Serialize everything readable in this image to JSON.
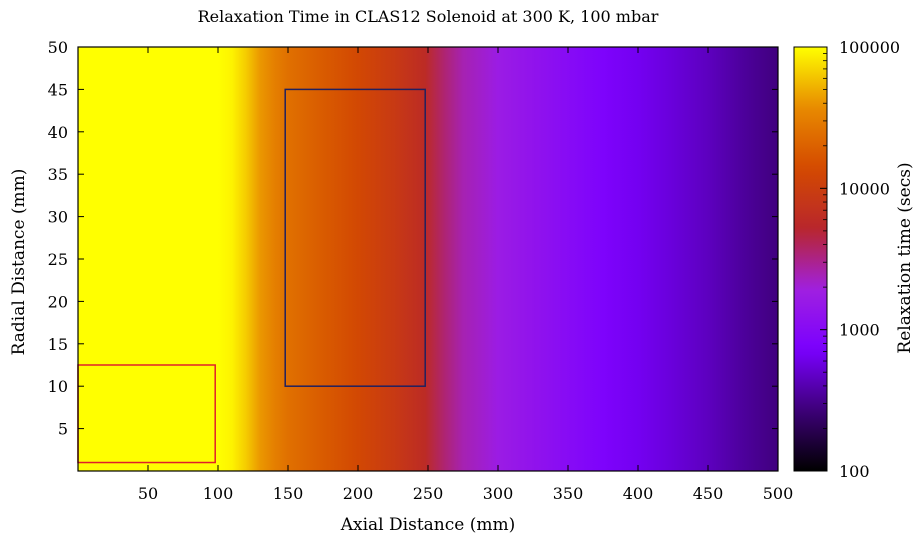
{
  "chart_data": {
    "type": "heatmap",
    "title": "Relaxation Time in CLAS12 Solenoid at 300 K, 100 mbar",
    "xlabel": "Axial Distance (mm)",
    "ylabel": "Radial Distance (mm)",
    "colorbar_label": "Relaxation time (secs)",
    "xlim": [
      0,
      500
    ],
    "ylim": [
      0,
      50
    ],
    "x_ticks": [
      50,
      100,
      150,
      200,
      250,
      300,
      350,
      400,
      450,
      500
    ],
    "y_ticks": [
      5,
      10,
      15,
      20,
      25,
      30,
      35,
      40,
      45,
      50
    ],
    "colorbar": {
      "scale": "log",
      "range": [
        100,
        100000
      ],
      "ticks": [
        100,
        1000,
        10000,
        100000
      ],
      "tick_labels": [
        "100",
        "1000",
        "10000",
        "100000"
      ],
      "colormap": [
        "#000000",
        "#3d0078",
        "#7a00ff",
        "#a020e0",
        "#b8262c",
        "#d44a00",
        "#e88a00",
        "#ffff00"
      ]
    },
    "profile_along_x": {
      "x": [
        0,
        100,
        110,
        120,
        130,
        140,
        150,
        175,
        200,
        225,
        248,
        262,
        275,
        300,
        325,
        350,
        375,
        400,
        425,
        450,
        475,
        500
      ],
      "value": [
        100000,
        100000,
        90000,
        65000,
        42000,
        32000,
        25000,
        18000,
        13000,
        9000,
        6000,
        3500,
        2500,
        1700,
        1300,
        1000,
        800,
        650,
        550,
        450,
        350,
        280
      ]
    },
    "regions": [
      {
        "x": [
          0,
          98
        ],
        "y": [
          1,
          12.5
        ],
        "color": "#e0202a"
      },
      {
        "x": [
          148,
          248
        ],
        "y": [
          10,
          45
        ],
        "color": "#202060"
      }
    ],
    "grid": false,
    "legend": "none"
  }
}
